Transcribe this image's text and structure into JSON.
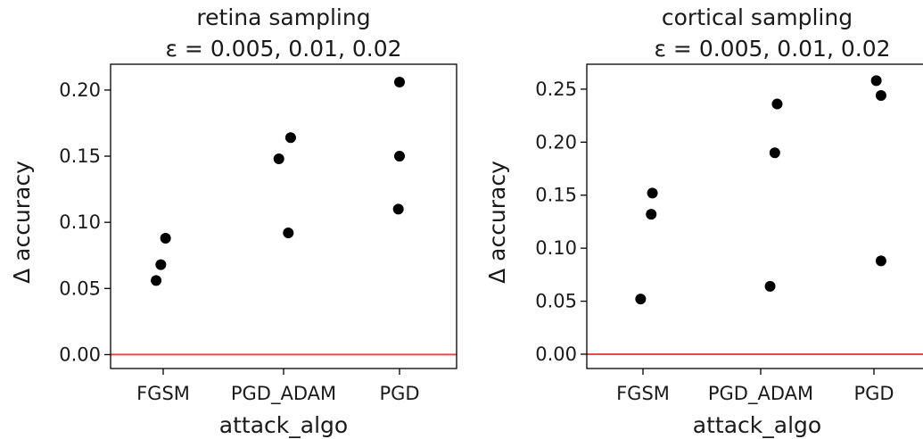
{
  "chart_data": [
    {
      "type": "scatter",
      "title_line1": "retina sampling",
      "title_line2": "ε = 0.005, 0.01, 0.02",
      "xlabel": "attack_algo",
      "ylabel": "Δ accuracy",
      "categories": [
        "FGSM",
        "PGD_ADAM",
        "PGD"
      ],
      "ylim": [
        -0.0105,
        0.2195
      ],
      "yticks": [
        "0.00",
        "0.05",
        "0.10",
        "0.15",
        "0.20"
      ],
      "ytick_values": [
        0.0,
        0.05,
        0.1,
        0.15,
        0.2
      ],
      "reference_line": 0.0,
      "reference_color": "#e8494b",
      "point_color": "#000000",
      "points": [
        {
          "category": "FGSM",
          "jitter": -0.06,
          "y": 0.056
        },
        {
          "category": "FGSM",
          "jitter": -0.02,
          "y": 0.068
        },
        {
          "category": "FGSM",
          "jitter": 0.02,
          "y": 0.088
        },
        {
          "category": "PGD_ADAM",
          "jitter": -0.04,
          "y": 0.148
        },
        {
          "category": "PGD_ADAM",
          "jitter": 0.06,
          "y": 0.164
        },
        {
          "category": "PGD_ADAM",
          "jitter": 0.04,
          "y": 0.092
        },
        {
          "category": "PGD",
          "jitter": 0.0,
          "y": 0.206
        },
        {
          "category": "PGD",
          "jitter": 0.0,
          "y": 0.15
        },
        {
          "category": "PGD",
          "jitter": -0.01,
          "y": 0.11
        }
      ]
    },
    {
      "type": "scatter",
      "title_line1": "cortical sampling",
      "title_line2": "ε = 0.005, 0.01, 0.02",
      "xlabel": "attack_algo",
      "ylabel": "Δ accuracy",
      "categories": [
        "FGSM",
        "PGD_ADAM",
        "PGD"
      ],
      "ylim": [
        -0.0135,
        0.2735
      ],
      "yticks": [
        "0.00",
        "0.05",
        "0.10",
        "0.15",
        "0.20",
        "0.25"
      ],
      "ytick_values": [
        0.0,
        0.05,
        0.1,
        0.15,
        0.2,
        0.25
      ],
      "reference_line": 0.0,
      "reference_color": "#e8494b",
      "point_color": "#000000",
      "points": [
        {
          "category": "FGSM",
          "jitter": 0.08,
          "y": 0.152
        },
        {
          "category": "FGSM",
          "jitter": 0.07,
          "y": 0.132
        },
        {
          "category": "FGSM",
          "jitter": -0.02,
          "y": 0.052
        },
        {
          "category": "PGD_ADAM",
          "jitter": 0.14,
          "y": 0.236
        },
        {
          "category": "PGD_ADAM",
          "jitter": 0.12,
          "y": 0.19
        },
        {
          "category": "PGD_ADAM",
          "jitter": 0.08,
          "y": 0.064
        },
        {
          "category": "PGD",
          "jitter": 0.02,
          "y": 0.258
        },
        {
          "category": "PGD",
          "jitter": 0.06,
          "y": 0.244
        },
        {
          "category": "PGD",
          "jitter": 0.06,
          "y": 0.088
        }
      ]
    }
  ]
}
